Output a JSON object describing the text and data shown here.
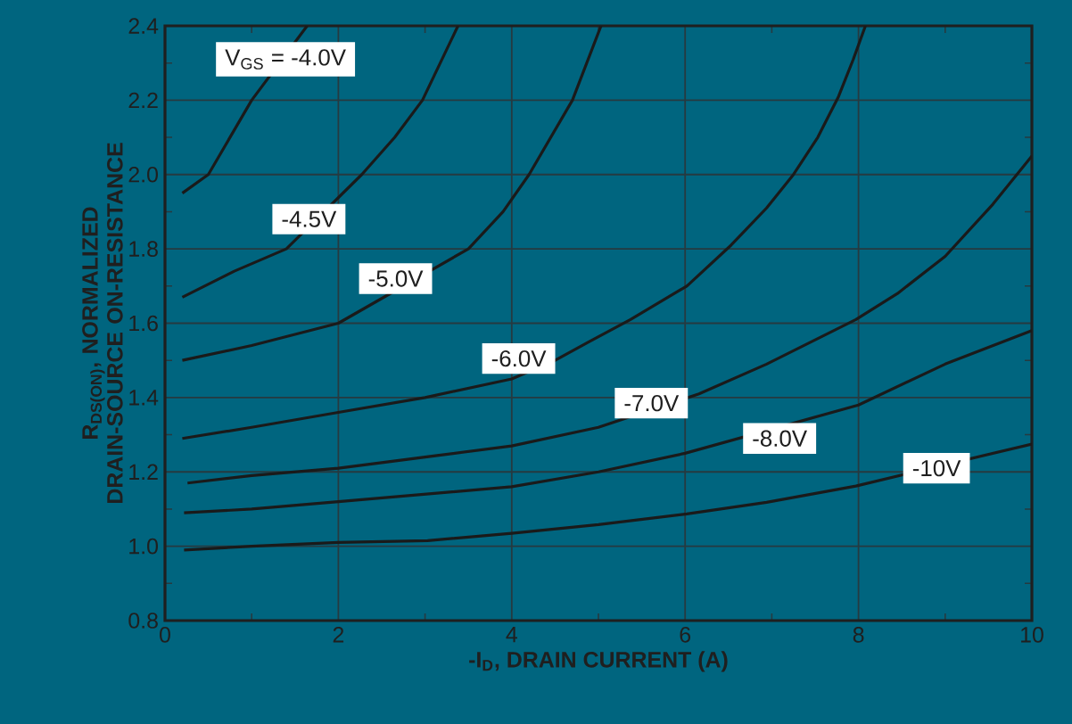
{
  "chart_data": {
    "type": "line",
    "xlabel": "-I$_{D}$, DRAIN CURRENT (A)",
    "ylabel": "R$_{DS(ON)}$, NORMALIZED DRAIN-SOURCE ON-RESISTANCE",
    "xlim": [
      0,
      10
    ],
    "ylim": [
      0.8,
      2.4
    ],
    "xticks": [
      0,
      2,
      4,
      6,
      8,
      10
    ],
    "yticks": [
      {
        "value": 0.8,
        "label": "0.8"
      },
      {
        "value": 1.0,
        "label": "1.0"
      },
      {
        "value": 1.2,
        "label": "1.2"
      },
      {
        "value": 1.4,
        "label": "1.4"
      },
      {
        "value": 1.6,
        "label": "1.6"
      },
      {
        "value": 1.8,
        "label": "1.8"
      },
      {
        "value": 2.0,
        "label": "2.0"
      },
      {
        "value": 2.2,
        "label": "2.2"
      },
      {
        "value": 2.4,
        "label": "2.4"
      }
    ],
    "grid": true,
    "marker": "none",
    "line_style": "solid",
    "series": [
      {
        "color": "#1a1a1a",
        "x": [
          0.2,
          0.5,
          1.0,
          1.3,
          1.64
        ],
        "values": [
          1.95,
          2.0,
          2.2,
          null,
          2.4
        ]
      },
      {
        "color": "#1a1a1a",
        "x": [
          0.2,
          0.8,
          1.4,
          1.9,
          2.27,
          2.65,
          2.97,
          3.38
        ],
        "values": [
          1.67,
          1.74,
          1.8,
          null,
          2.0,
          2.1,
          2.2,
          2.4
        ]
      },
      {
        "color": "#1a1a1a",
        "x": [
          0.2,
          1.0,
          2.0,
          3.0,
          3.5,
          3.9,
          4.2,
          4.7,
          5.03
        ],
        "values": [
          1.5,
          1.54,
          1.6,
          null,
          1.8,
          1.9,
          2.0,
          2.2,
          2.4
        ]
      },
      {
        "color": "#1a1a1a",
        "x": [
          0.2,
          1,
          2,
          3,
          4,
          4.5,
          4.89,
          5.37,
          6.02,
          6.53,
          6.94,
          7.25,
          7.53,
          7.77,
          7.94,
          8.08
        ],
        "values": [
          1.29,
          1.32,
          1.36,
          1.4,
          1.45,
          1.5,
          1.55,
          1.61,
          1.7,
          1.81,
          1.91,
          2.0,
          2.1,
          2.21,
          2.31,
          2.4
        ]
      },
      {
        "color": "#1a1a1a",
        "x": [
          0.26,
          1,
          2,
          3,
          4,
          5,
          6.16,
          6.94,
          7.97,
          8.45,
          9.0,
          9.55,
          10
        ],
        "values": [
          1.17,
          1.19,
          1.21,
          1.24,
          1.27,
          1.32,
          1.41,
          1.49,
          1.61,
          1.68,
          1.78,
          1.92,
          2.05
        ]
      },
      {
        "color": "#1a1a1a",
        "x": [
          0.22,
          1,
          2,
          3,
          4,
          5,
          6,
          7,
          8,
          9,
          10
        ],
        "values": [
          1.09,
          1.1,
          1.12,
          1.14,
          1.16,
          1.2,
          1.25,
          null,
          1.38,
          1.49,
          1.58
        ]
      },
      {
        "color": "#1a1a1a",
        "x": [
          0.22,
          1,
          2,
          3.03,
          4,
          5,
          6.02,
          6.94,
          7.97,
          9,
          10
        ],
        "values": [
          0.99,
          1.0,
          1.01,
          1.015,
          1.035,
          1.058,
          1.087,
          1.118,
          1.162,
          null,
          1.275
        ]
      }
    ],
    "annotations": [
      {
        "text": "V$_{GS}$ = -4.0V",
        "x": 1.39,
        "y": 2.31
      },
      {
        "text": "-4.5V",
        "x": 1.66,
        "y": 1.88
      },
      {
        "text": "-5.0V",
        "x": 2.66,
        "y": 1.72
      },
      {
        "text": "-6.0V",
        "x": 4.08,
        "y": 1.505
      },
      {
        "text": "-7.0V",
        "x": 5.61,
        "y": 1.385
      },
      {
        "text": "-8.0V",
        "x": 7.09,
        "y": 1.29
      },
      {
        "text": "-10V",
        "x": 8.9,
        "y": 1.21
      }
    ]
  }
}
